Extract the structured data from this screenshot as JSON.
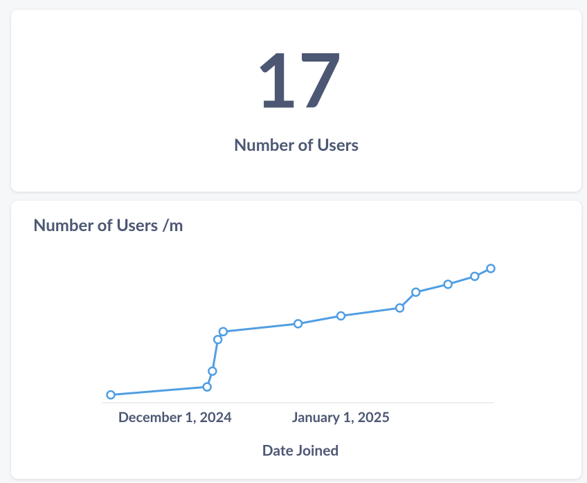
{
  "scalar": {
    "value": 17,
    "label": "Number of Users"
  },
  "chart_data": {
    "type": "line",
    "title": "Number of Users /m",
    "x_label": "Date Joined",
    "x": [
      "2024-11-19",
      "2024-12-07",
      "2024-12-08",
      "2024-12-09",
      "2024-12-10",
      "2024-12-24",
      "2025-01-01",
      "2025-01-12",
      "2025-01-15",
      "2025-01-21",
      "2025-01-26",
      "2025-01-29"
    ],
    "series": [
      {
        "name": "Number of Users",
        "color": "#509ee3",
        "values": [
          1,
          2,
          4,
          8,
          9,
          10,
          11,
          12,
          14,
          15,
          16,
          17
        ]
      }
    ],
    "xlim": [
      "2024-11-19",
      "2025-01-29"
    ],
    "xticks": [
      {
        "value": "2024-12-01",
        "label": "December 1, 2024"
      },
      {
        "value": "2025-01-01",
        "label": "January 1, 2025"
      }
    ],
    "ylim": [
      0,
      17
    ]
  }
}
